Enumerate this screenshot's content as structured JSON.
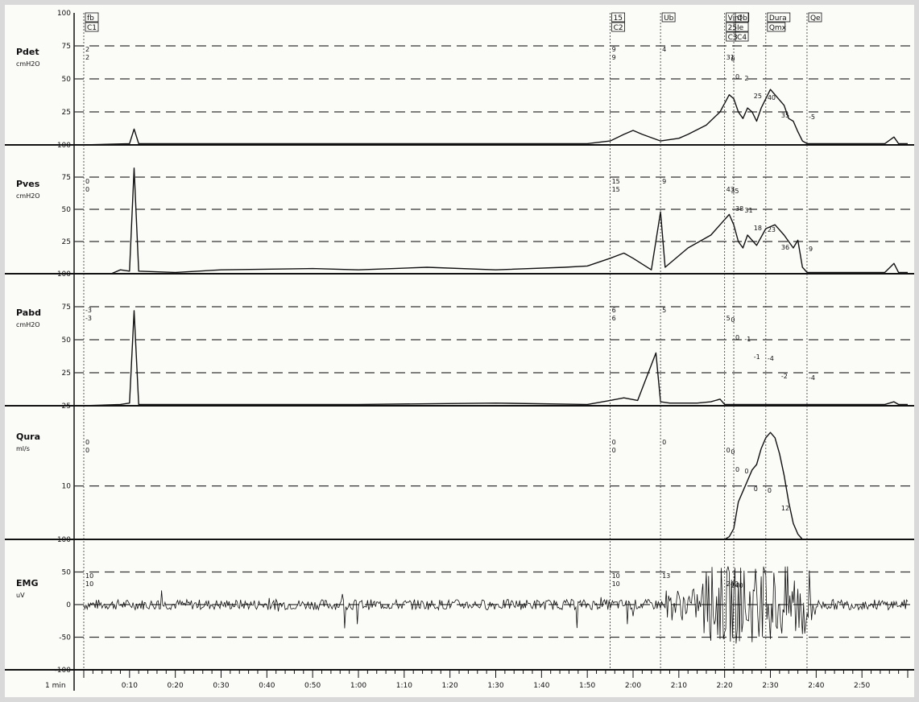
{
  "chart_data": {
    "type": "line",
    "title": "",
    "xlabel": "1 min",
    "x_ticks": [
      "0:10",
      "0:20",
      "0:30",
      "0:40",
      "0:50",
      "1:00",
      "1:10",
      "1:20",
      "1:30",
      "1:40",
      "1:50",
      "2:00",
      "2:10",
      "2:20",
      "2:30",
      "2:40",
      "2:50"
    ],
    "xlim_seconds": [
      0,
      180
    ],
    "grid": "dashed horizontal",
    "panels": [
      {
        "name": "Pdet",
        "unit": "cmH2O",
        "ylim": [
          0,
          100
        ],
        "yticks": [
          "100",
          "75",
          "50",
          "25"
        ],
        "series": [
          [
            0,
            0
          ],
          [
            10,
            1
          ],
          [
            11,
            12
          ],
          [
            12,
            1
          ],
          [
            30,
            1
          ],
          [
            60,
            1
          ],
          [
            90,
            1
          ],
          [
            110,
            1
          ],
          [
            115,
            3
          ],
          [
            118,
            8
          ],
          [
            120,
            11
          ],
          [
            122,
            8
          ],
          [
            126,
            3
          ],
          [
            130,
            5
          ],
          [
            132,
            8
          ],
          [
            136,
            15
          ],
          [
            139,
            25
          ],
          [
            141,
            38
          ],
          [
            142,
            35
          ],
          [
            143,
            25
          ],
          [
            144,
            20
          ],
          [
            145,
            28
          ],
          [
            146,
            25
          ],
          [
            147,
            18
          ],
          [
            148,
            28
          ],
          [
            150,
            42
          ],
          [
            151,
            38
          ],
          [
            153,
            30
          ],
          [
            154,
            20
          ],
          [
            155,
            18
          ],
          [
            156,
            10
          ],
          [
            157,
            3
          ],
          [
            158,
            1
          ],
          [
            175,
            1
          ],
          [
            177,
            6
          ],
          [
            178,
            1
          ],
          [
            180,
            1
          ]
        ]
      },
      {
        "name": "Pves",
        "unit": "cmH2O",
        "ylim": [
          0,
          100
        ],
        "yticks": [
          "100",
          "75",
          "50",
          "25"
        ],
        "series": [
          [
            0,
            0
          ],
          [
            6,
            0
          ],
          [
            8,
            3
          ],
          [
            10,
            2
          ],
          [
            11,
            82
          ],
          [
            12,
            2
          ],
          [
            20,
            1
          ],
          [
            30,
            3
          ],
          [
            50,
            4
          ],
          [
            60,
            3
          ],
          [
            75,
            5
          ],
          [
            90,
            3
          ],
          [
            105,
            5
          ],
          [
            110,
            6
          ],
          [
            115,
            12
          ],
          [
            118,
            16
          ],
          [
            120,
            12
          ],
          [
            124,
            3
          ],
          [
            126,
            48
          ],
          [
            127,
            5
          ],
          [
            132,
            20
          ],
          [
            137,
            30
          ],
          [
            139,
            38
          ],
          [
            141,
            46
          ],
          [
            142,
            38
          ],
          [
            143,
            25
          ],
          [
            144,
            20
          ],
          [
            145,
            30
          ],
          [
            147,
            22
          ],
          [
            149,
            35
          ],
          [
            151,
            38
          ],
          [
            153,
            30
          ],
          [
            155,
            20
          ],
          [
            156,
            26
          ],
          [
            157,
            5
          ],
          [
            158,
            1
          ],
          [
            175,
            1
          ],
          [
            177,
            8
          ],
          [
            178,
            1
          ],
          [
            180,
            1
          ]
        ]
      },
      {
        "name": "Pabd",
        "unit": "cmH2O",
        "ylim": [
          0,
          100
        ],
        "yticks": [
          "100",
          "75",
          "50",
          "25"
        ],
        "series": [
          [
            0,
            0
          ],
          [
            8,
            1
          ],
          [
            10,
            2
          ],
          [
            11,
            72
          ],
          [
            12,
            1
          ],
          [
            30,
            1
          ],
          [
            60,
            1
          ],
          [
            90,
            2
          ],
          [
            110,
            1
          ],
          [
            115,
            4
          ],
          [
            118,
            6
          ],
          [
            121,
            4
          ],
          [
            125,
            40
          ],
          [
            126,
            3
          ],
          [
            128,
            2
          ],
          [
            134,
            2
          ],
          [
            137,
            3
          ],
          [
            139,
            5
          ],
          [
            140,
            1
          ],
          [
            160,
            1
          ],
          [
            175,
            1
          ],
          [
            177,
            3
          ],
          [
            178,
            1
          ],
          [
            180,
            1
          ]
        ]
      },
      {
        "name": "Qura",
        "unit": "ml/s",
        "ylim": [
          0,
          25
        ],
        "yticks": [
          "25",
          "10"
        ],
        "series": [
          [
            140,
            0
          ],
          [
            141,
            0.5
          ],
          [
            142,
            2
          ],
          [
            143,
            7
          ],
          [
            144,
            9
          ],
          [
            145,
            11
          ],
          [
            146,
            13
          ],
          [
            147,
            14
          ],
          [
            148,
            17
          ],
          [
            149,
            19
          ],
          [
            150,
            20
          ],
          [
            151,
            19
          ],
          [
            152,
            16
          ],
          [
            153,
            12
          ],
          [
            154,
            7
          ],
          [
            155,
            3
          ],
          [
            156,
            1
          ],
          [
            157,
            0
          ]
        ]
      },
      {
        "name": "EMG",
        "unit": "uV",
        "ylim": [
          -100,
          100
        ],
        "yticks": [
          "100",
          "50",
          "0",
          "-50",
          "-100"
        ],
        "series": []
      }
    ],
    "markers": [
      {
        "time": 0,
        "labels": [
          "fb",
          "C1"
        ]
      },
      {
        "time": 115,
        "labels": [
          "15",
          "C2"
        ]
      },
      {
        "time": 126,
        "labels": [
          "Ub"
        ]
      },
      {
        "time": 140,
        "labels": [
          "Vinf",
          "25",
          "C3"
        ]
      },
      {
        "time": 142,
        "labels": [
          "Qb",
          "Ie",
          "C4"
        ]
      },
      {
        "time": 149,
        "labels": [
          "Dura",
          "Qmx"
        ]
      },
      {
        "time": 158,
        "labels": [
          "Qe"
        ]
      }
    ],
    "annotations": [
      {
        "panel": "Pdet",
        "values": [
          "2",
          "2",
          "9",
          "9",
          "4",
          "31",
          "0",
          "0",
          "2",
          "25",
          "40",
          "35",
          "-5"
        ]
      },
      {
        "panel": "Pves",
        "values": [
          "0",
          "0",
          "15",
          "15",
          "9",
          "43",
          "35",
          "38",
          "31",
          "18",
          "23",
          "36",
          "9"
        ]
      },
      {
        "panel": "Pabd",
        "values": [
          "-3",
          "-3",
          "6",
          "6",
          "5",
          "5",
          "0",
          "0",
          "-1",
          "-1",
          "-4",
          "-2",
          "-4"
        ]
      },
      {
        "panel": "Qura",
        "values": [
          "0",
          "0",
          "0",
          "0",
          "0",
          "0",
          "0",
          "0",
          "0",
          "0",
          "0",
          "12"
        ]
      },
      {
        "panel": "EMG",
        "values": [
          "10",
          "10",
          "10",
          "10",
          "13",
          "240",
          "240"
        ]
      }
    ]
  }
}
